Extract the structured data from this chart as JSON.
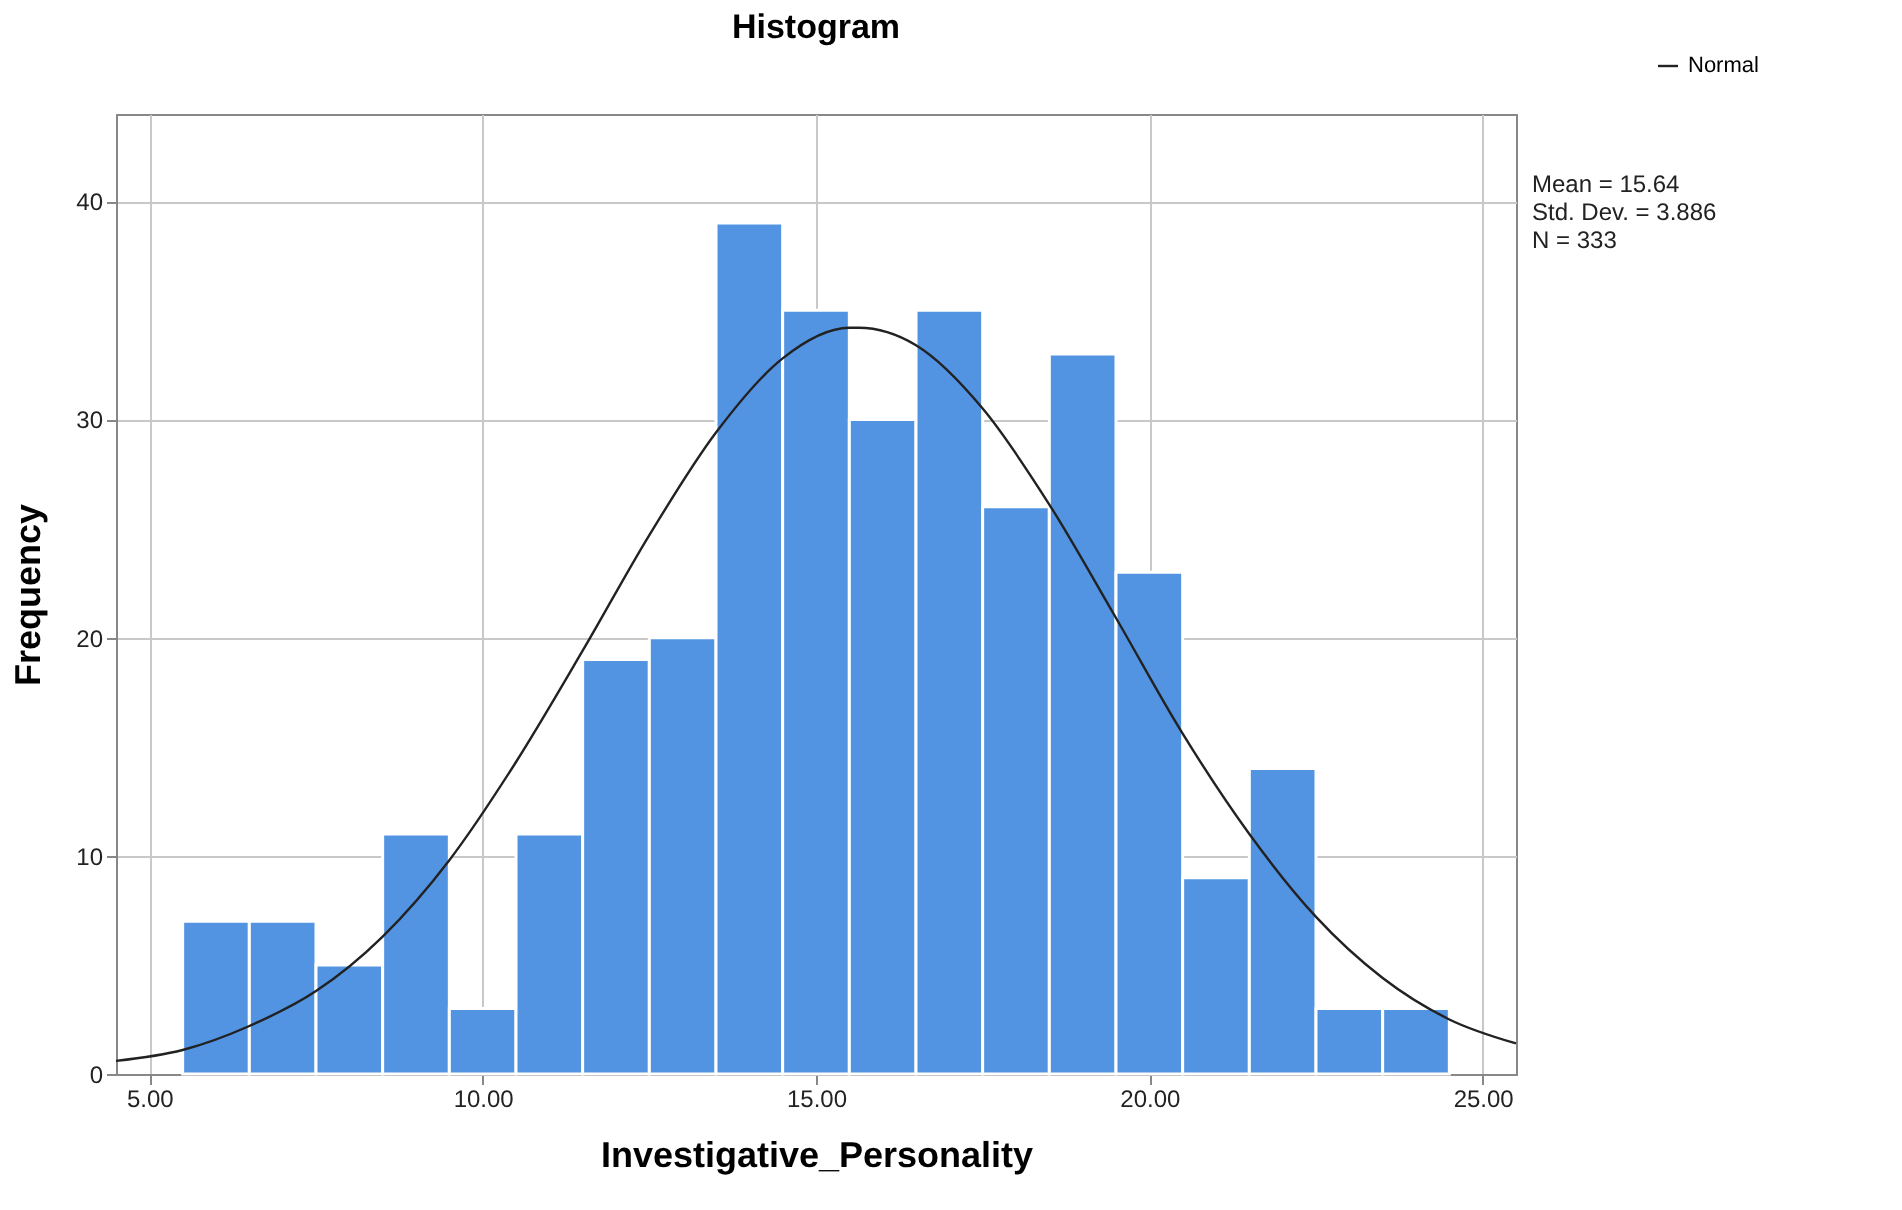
{
  "chart_data": {
    "type": "histogram",
    "title": "Histogram",
    "xlabel": "Investigative_Personality",
    "ylabel": "Frequency",
    "bins": [
      5.5,
      6.5,
      7.5,
      8.5,
      9.5,
      10.5,
      11.5,
      12.5,
      13.5,
      14.5,
      15.5,
      16.5,
      17.5,
      18.5,
      19.5,
      20.5,
      21.5,
      22.5,
      23.5,
      24.5
    ],
    "values": [
      7,
      7,
      5,
      11,
      3,
      11,
      19,
      20,
      39,
      35,
      30,
      35,
      26,
      33,
      23,
      9,
      14,
      3,
      3
    ],
    "color": "#5294e2",
    "series": [
      {
        "type": "line",
        "name": "Normal",
        "color": "#222222",
        "x": [
          4.5,
          5.5,
          6.5,
          7.5,
          8.5,
          9.5,
          10.5,
          11.5,
          12.5,
          13.5,
          14.5,
          15.5,
          15.64,
          16.5,
          17.5,
          18.5,
          19.5,
          20.5,
          21.5,
          22.5,
          23.5,
          24.5,
          25.5
        ],
        "values": [
          0.6,
          1.1,
          2.2,
          3.8,
          6.3,
          9.8,
          14.3,
          19.4,
          24.7,
          29.4,
          32.8,
          34.2,
          34.2,
          33.4,
          30.5,
          26.1,
          20.9,
          15.6,
          11.0,
          7.2,
          4.4,
          2.5,
          1.4
        ]
      }
    ],
    "xlim": [
      4.5,
      25.5
    ],
    "ylim": [
      0,
      44
    ],
    "xticks": [
      {
        "value": 5,
        "label": "5.00"
      },
      {
        "value": 10,
        "label": "10.00"
      },
      {
        "value": 15,
        "label": "15.00"
      },
      {
        "value": 20,
        "label": "20.00"
      },
      {
        "value": 25,
        "label": "25.00"
      }
    ],
    "yticks": [
      0,
      10,
      20,
      30,
      40
    ],
    "grid": true,
    "legend": "top right",
    "annotations": [
      "Mean = 15.64",
      "Std. Dev. = 3.886",
      "N = 333"
    ]
  }
}
